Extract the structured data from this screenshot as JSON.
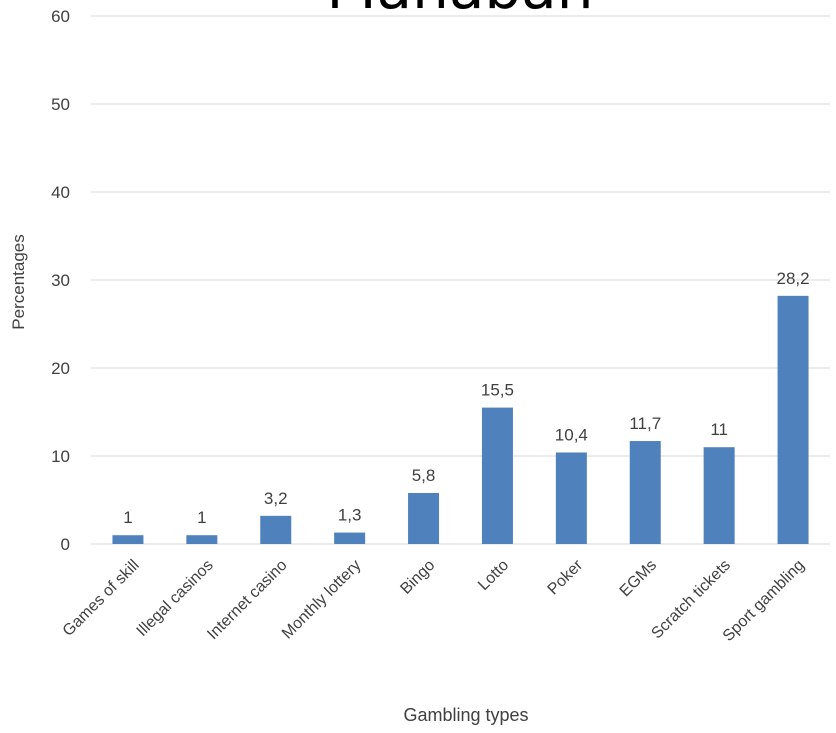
{
  "chart_data": {
    "type": "bar",
    "title": "Manabah",
    "xlabel": "Gambling types",
    "ylabel": "Percentages",
    "ylim": [
      0,
      60
    ],
    "yticks": [
      "0",
      "10",
      "20",
      "30",
      "40",
      "50",
      "60"
    ],
    "categories": [
      "Games of skill",
      "Illegal casinos",
      "Internet casino",
      "Monthly lottery",
      "Bingo",
      "Lotto",
      "Poker",
      "EGMs",
      "Scratch tickets",
      "Sport gambling"
    ],
    "values": [
      1,
      1,
      3.2,
      1.3,
      5.8,
      15.5,
      10.4,
      11.7,
      11,
      28.2
    ],
    "data_labels": [
      "1",
      "1",
      "3,2",
      "1,3",
      "5,8",
      "15,5",
      "10,4",
      "11,7",
      "11",
      "28,2"
    ],
    "grid": true,
    "legend": "none",
    "colors": {
      "bar": "#4F81BD",
      "grid": "#D9D9D9",
      "text": "#404040",
      "title": "#000000"
    }
  }
}
